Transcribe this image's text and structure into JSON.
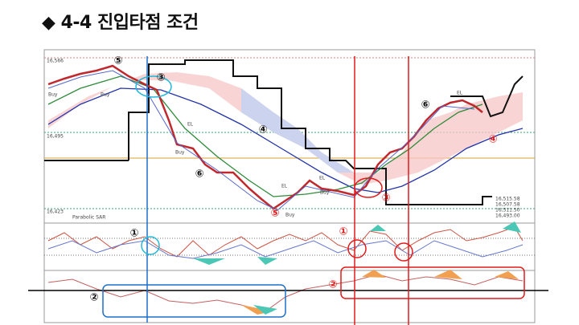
{
  "title": "◆ 4-4 진입타점 조건",
  "chart_labels": {
    "indicator": "Parabolic SAR",
    "price_top": "16,566",
    "price_mid": "16,495",
    "price_low": "16,423",
    "readout": [
      "16,515.58",
      "16,507.58",
      "16,511.50",
      "16,493.00"
    ]
  },
  "signals": [
    "Buy",
    "Buy",
    "Buy",
    "Buy",
    "Buy",
    "EL",
    "EL",
    "EL",
    "EL"
  ],
  "annotations": [
    "⑤",
    "③",
    "④",
    "⑥",
    "⑥",
    "⑤",
    "③",
    "④",
    "①",
    "①",
    "②",
    "②"
  ]
}
